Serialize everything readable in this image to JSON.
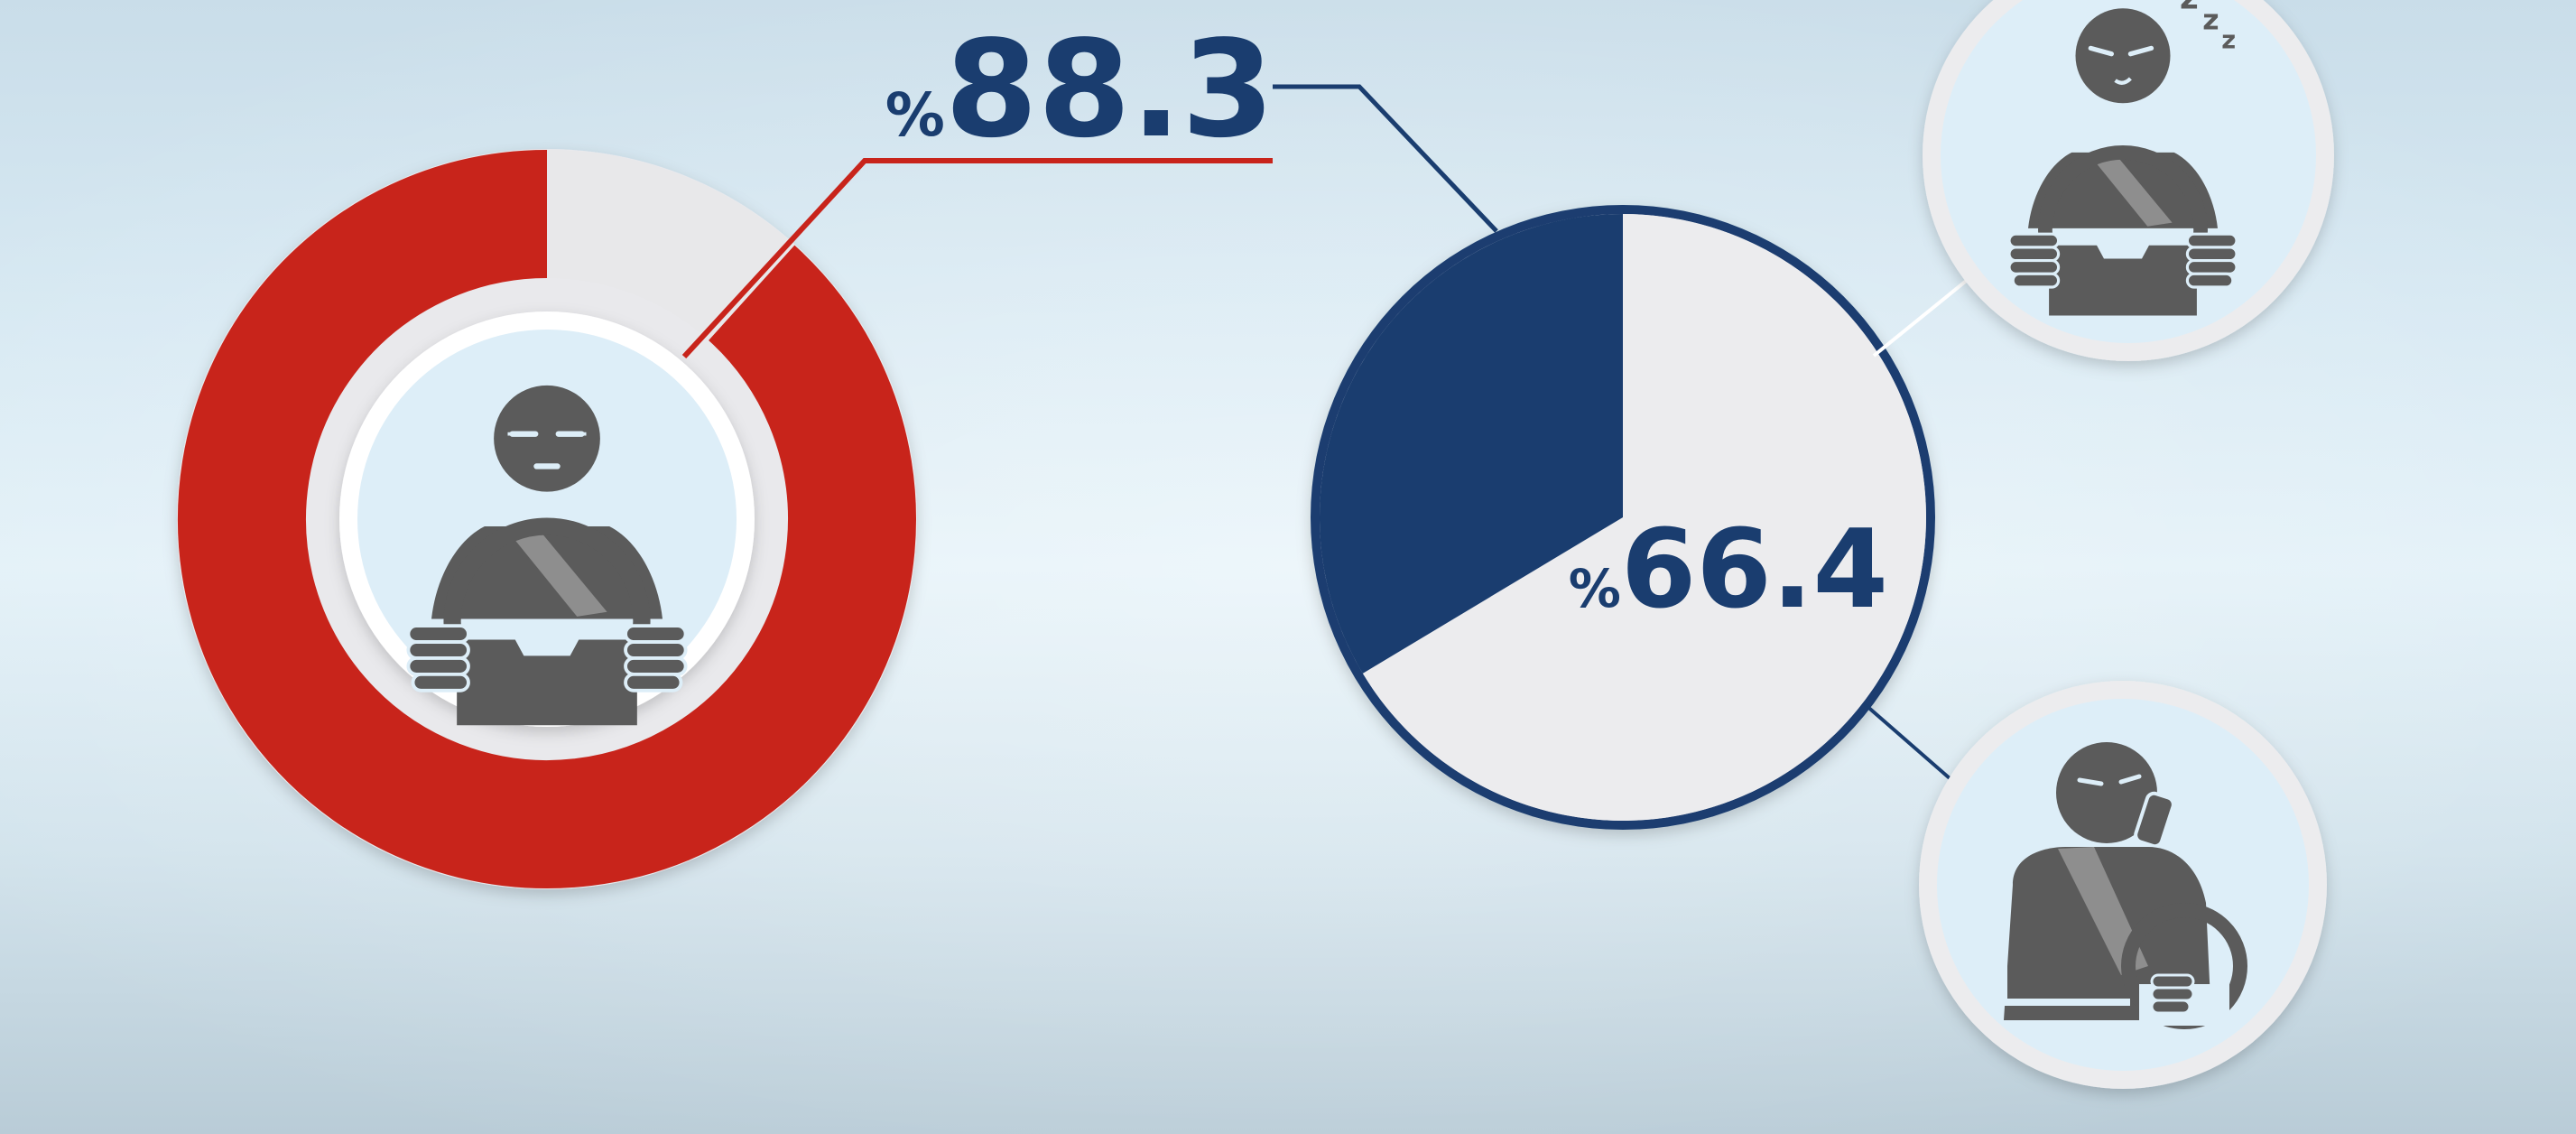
{
  "colors": {
    "red": "#c8241b",
    "navy": "#1a3d6f",
    "ring_gray": "#e8e8ea",
    "icon_gray": "#5b5b5b",
    "badge_bg": "#ddeef8"
  },
  "icons": {
    "donut_center": "calm-driver-icon",
    "top_badge": "sleepy-driver-icon",
    "bottom_badge": "phone-driver-icon"
  },
  "chart_data": [
    {
      "type": "pie",
      "variant": "donut",
      "values": [
        88.3,
        11.7
      ],
      "value_label": {
        "prefix": "%",
        "number": "88.3"
      },
      "colors": [
        "#c8241b",
        "#e8e8ea"
      ]
    },
    {
      "type": "pie",
      "values": [
        33.6,
        66.4
      ],
      "value_label": {
        "prefix": "%",
        "number": "66.4"
      },
      "colors": [
        "#1a3d6f",
        "#ececee"
      ]
    }
  ]
}
